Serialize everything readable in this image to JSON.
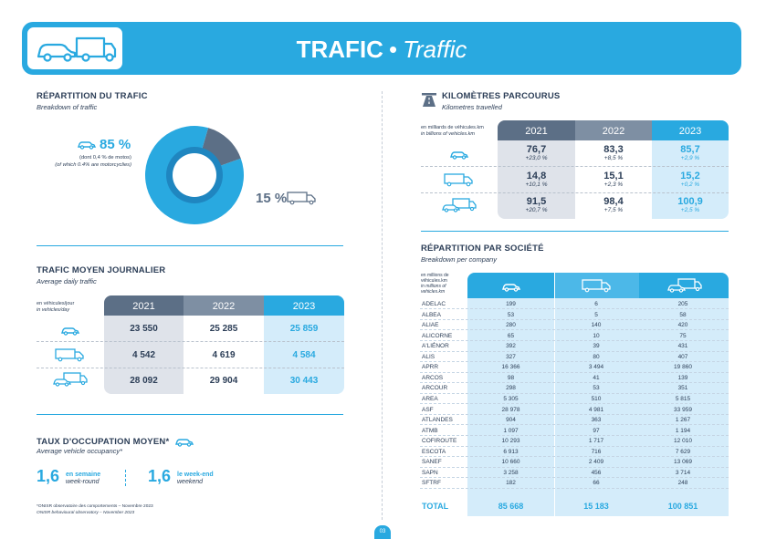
{
  "header": {
    "title_bold": "TRAFIC",
    "separator": "•",
    "title_italic": "Traffic"
  },
  "breakdown": {
    "title": "RÉPARTITION DU TRAFIC",
    "subtitle": "Breakdown of traffic",
    "cars_pct": "85 %",
    "cars_note_fr": "(dont 0,4 % de motos)",
    "cars_note_en": "(of which 0.4% are motorcyclies)",
    "trucks_pct": "15 %"
  },
  "chart_data": {
    "type": "pie",
    "categories": [
      "Light vehicles",
      "Heavy vehicles"
    ],
    "values": [
      85,
      15
    ],
    "colors": [
      "#29a9e0",
      "#5c6f86"
    ]
  },
  "daily": {
    "title": "TRAFIC MOYEN JOURNALIER",
    "subtitle": "Average daily traffic",
    "unit_fr": "en véhicules/jour",
    "unit_en": "in vehicles/day",
    "years": [
      "2021",
      "2022",
      "2023"
    ],
    "rows": [
      {
        "icon": "car-icon",
        "values": [
          "23 550",
          "25 285",
          "25 859"
        ]
      },
      {
        "icon": "truck-icon",
        "values": [
          "4 542",
          "4 619",
          "4 584"
        ]
      },
      {
        "icon": "car-truck-icon",
        "values": [
          "28 092",
          "29 904",
          "30 443"
        ]
      }
    ]
  },
  "occupancy": {
    "title": "TAUX D'OCCUPATION MOYEN*",
    "subtitle": "Average vehicle occupancy*",
    "weekday_value": "1,6",
    "weekday_fr": "en semaine",
    "weekday_en": "week-round",
    "weekend_value": "1,6",
    "weekend_fr": "le week-end",
    "weekend_en": "weekend",
    "footnote_fr": "*ONISR observatoire des comportements – Novembre 2023",
    "footnote_en": "ONISR behavioural observatory – November 2023"
  },
  "km": {
    "title": "KILOMÈTRES PARCOURUS",
    "subtitle": "Kilometres travelled",
    "unit_fr": "en milliards de véhicules.km",
    "unit_en": "in billions of vehicles.km",
    "years": [
      "2021",
      "2022",
      "2023"
    ],
    "rows": [
      {
        "icon": "car-icon",
        "values": [
          "76,7",
          "83,3",
          "85,7"
        ],
        "pcts": [
          "+23,0 %",
          "+8,5 %",
          "+2,9 %"
        ]
      },
      {
        "icon": "truck-icon",
        "values": [
          "14,8",
          "15,1",
          "15,2"
        ],
        "pcts": [
          "+10,1 %",
          "+2,3 %",
          "+0,2 %"
        ]
      },
      {
        "icon": "car-truck-icon",
        "values": [
          "91,5",
          "98,4",
          "100,9"
        ],
        "pcts": [
          "+20,7 %",
          "+7,5 %",
          "+2,5 %"
        ]
      }
    ]
  },
  "company": {
    "title": "RÉPARTITION PAR SOCIÉTÉ",
    "subtitle": "Breakdown per company",
    "unit_fr": "en millions de véhicules.km",
    "unit_en": "in millions of vehicles.km",
    "rows": [
      [
        "ADELAC",
        "199",
        "6",
        "205"
      ],
      [
        "ALBEA",
        "53",
        "5",
        "58"
      ],
      [
        "ALIAE",
        "280",
        "140",
        "420"
      ],
      [
        "ALICORNE",
        "65",
        "10",
        "75"
      ],
      [
        "A'LIÉNOR",
        "392",
        "39",
        "431"
      ],
      [
        "ALIS",
        "327",
        "80",
        "407"
      ],
      [
        "APRR",
        "16 366",
        "3 494",
        "19 860"
      ],
      [
        "ARCOS",
        "98",
        "41",
        "139"
      ],
      [
        "ARCOUR",
        "298",
        "53",
        "351"
      ],
      [
        "AREA",
        "5 305",
        "510",
        "5 815"
      ],
      [
        "ASF",
        "28 978",
        "4 981",
        "33 959"
      ],
      [
        "ATLANDES",
        "904",
        "363",
        "1 267"
      ],
      [
        "ATMB",
        "1 097",
        "97",
        "1 194"
      ],
      [
        "COFIROUTE",
        "10 293",
        "1 717",
        "12 010"
      ],
      [
        "ESCOTA",
        "6 913",
        "716",
        "7 629"
      ],
      [
        "SANEF",
        "10 660",
        "2 409",
        "13 069"
      ],
      [
        "SAPN",
        "3 258",
        "456",
        "3 714"
      ],
      [
        "SFTRF",
        "182",
        "66",
        "248"
      ]
    ],
    "total": [
      "TOTAL",
      "85 668",
      "15 183",
      "100 851"
    ]
  },
  "page_number": "03",
  "colors": {
    "accent": "#29a9e0",
    "dark": "#5c6f86",
    "mid": "#7e8fa3",
    "light": "#dfe3ea",
    "light_blue": "#d4ecfa"
  }
}
